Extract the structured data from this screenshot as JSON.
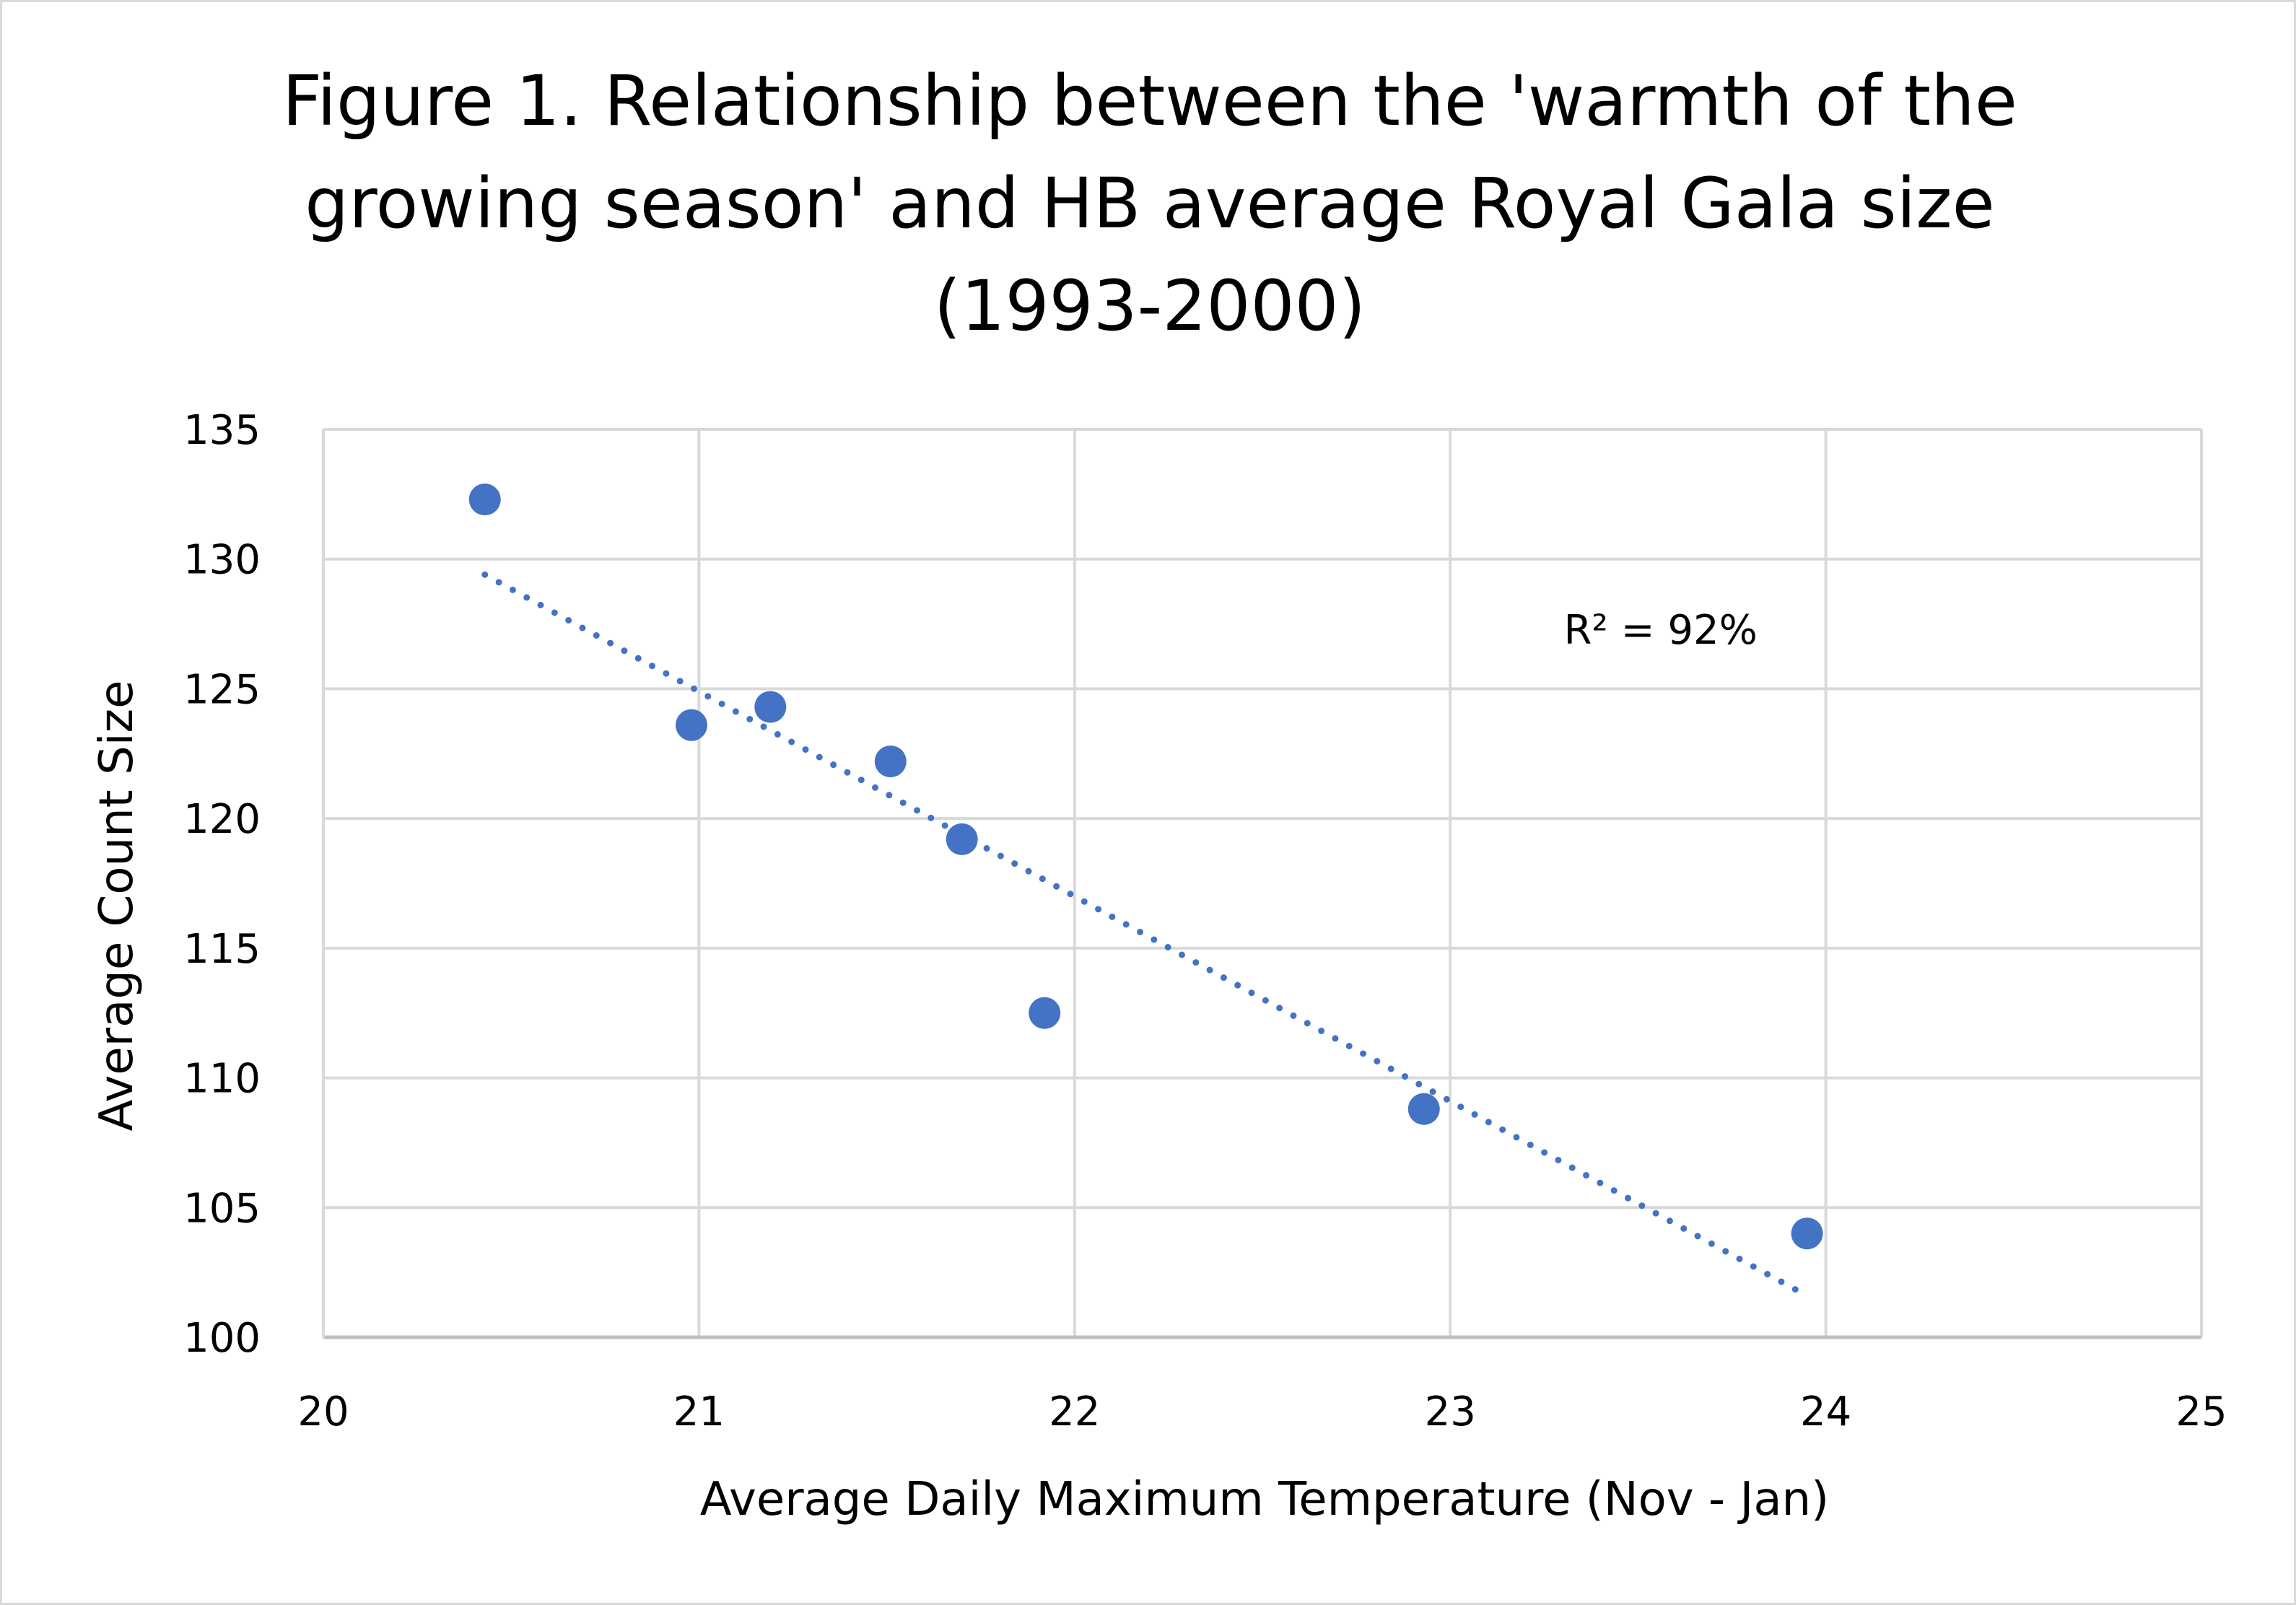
{
  "chart_data": {
    "type": "scatter",
    "title_lines": [
      "Figure 1. Relationship between the 'warmth of the",
      "growing season' and HB average Royal Gala size",
      "(1993-2000)"
    ],
    "xlabel": "Average Daily Maximum Temperature (Nov - Jan)",
    "ylabel": "Average Count Size",
    "xlim": [
      20,
      25
    ],
    "ylim": [
      100,
      135
    ],
    "x_ticks": [
      20,
      21,
      22,
      23,
      24,
      25
    ],
    "y_ticks": [
      100,
      105,
      110,
      115,
      120,
      125,
      130,
      135
    ],
    "grid": true,
    "points": [
      {
        "x": 20.43,
        "y": 132.3
      },
      {
        "x": 20.98,
        "y": 123.6
      },
      {
        "x": 21.19,
        "y": 124.3
      },
      {
        "x": 21.51,
        "y": 122.2
      },
      {
        "x": 21.7,
        "y": 119.2
      },
      {
        "x": 21.92,
        "y": 112.5
      },
      {
        "x": 22.93,
        "y": 108.8
      },
      {
        "x": 23.95,
        "y": 104.0
      }
    ],
    "trendline": {
      "style": "dotted",
      "x_start": 20.43,
      "y_start": 129.4,
      "x_end": 23.95,
      "y_end": 101.6
    },
    "annotation": "R² = 92%",
    "annotation_pos": {
      "x": 23.56,
      "y": 127.3
    },
    "marker_color": "#4472c4",
    "trend_color": "#4472c4",
    "grid_color": "#d9d9d9"
  }
}
